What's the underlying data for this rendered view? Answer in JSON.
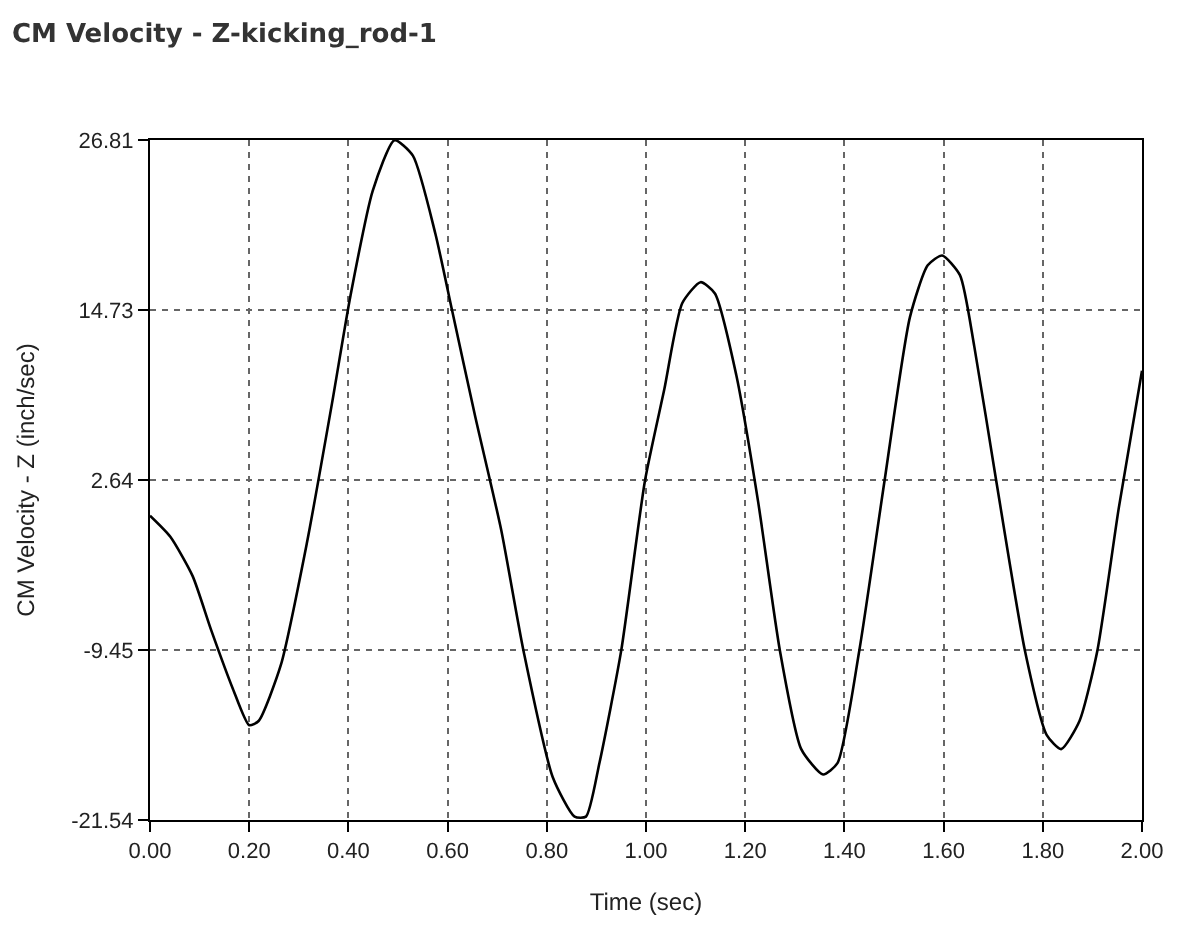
{
  "chart_data": {
    "type": "line",
    "title": "CM Velocity - Z-kicking_rod-1",
    "xlabel": "Time (sec)",
    "ylabel": "CM Velocity - Z (inch/sec)",
    "x": [
      0,
      0.041,
      0.086,
      0.123,
      0.167,
      0.2,
      0.219,
      0.264,
      0.316,
      0.367,
      0.404,
      0.449,
      0.493,
      0.53,
      0.575,
      0.609,
      0.656,
      0.708,
      0.753,
      0.812,
      0.856,
      0.879,
      0.906,
      0.95,
      0.998,
      1.037,
      1.073,
      1.11,
      1.139,
      1.182,
      1.226,
      1.27,
      1.313,
      1.357,
      1.386,
      1.43,
      1.481,
      1.532,
      1.568,
      1.597,
      1.633,
      1.662,
      1.706,
      1.764,
      1.808,
      1.837,
      1.874,
      1.91,
      1.953,
      2.0
    ],
    "series": [
      {
        "color": "#000000",
        "values": [
          0.1,
          -1.4,
          -4.2,
          -8.0,
          -12.2,
          -14.8,
          -14.5,
          -10.5,
          -1.9,
          8.1,
          15.7,
          23.2,
          26.8,
          25.7,
          20.2,
          14.7,
          7.1,
          -0.9,
          -9.5,
          -18.5,
          -21.3,
          -21.3,
          -17.5,
          -9.5,
          2.6,
          9.1,
          15.2,
          16.7,
          15.9,
          10.1,
          1.1,
          -9.5,
          -16.5,
          -18.3,
          -17.5,
          -9.5,
          2.6,
          14.2,
          17.9,
          18.6,
          17.2,
          12.1,
          2.6,
          -9.5,
          -15.5,
          -16.5,
          -14.5,
          -9.5,
          0.6,
          10.4
        ]
      }
    ],
    "xlim": [
      0,
      2
    ],
    "xticks": [
      {
        "value": 0,
        "label": "0.00"
      },
      {
        "value": 0.2,
        "label": "0.20"
      },
      {
        "value": 0.4,
        "label": "0.40"
      },
      {
        "value": 0.6,
        "label": "0.60"
      },
      {
        "value": 0.8,
        "label": "0.80"
      },
      {
        "value": 1,
        "label": "1.00"
      },
      {
        "value": 1.2,
        "label": "1.20"
      },
      {
        "value": 1.4,
        "label": "1.40"
      },
      {
        "value": 1.6,
        "label": "1.60"
      },
      {
        "value": 1.8,
        "label": "1.80"
      },
      {
        "value": 2,
        "label": "2.00"
      }
    ],
    "ylim": [
      -21.54,
      26.81
    ],
    "yticks": [
      -21.54,
      -9.45,
      2.64,
      14.73,
      26.81
    ],
    "grid": true,
    "line_style": "solid",
    "marker": "none"
  }
}
